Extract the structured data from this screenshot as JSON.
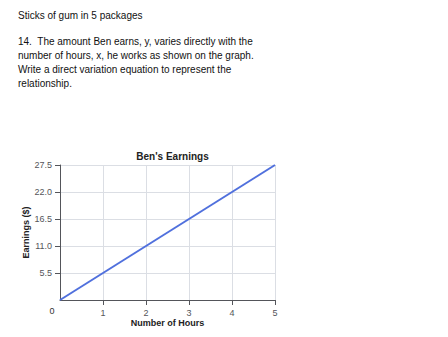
{
  "chart_data": {
    "type": "line",
    "title": "Ben's Earnings",
    "xlabel": "Number of Hours",
    "ylabel": "Earnings ($)",
    "x": [
      0,
      5
    ],
    "values": [
      0,
      27.5
    ],
    "xlim": [
      0,
      5
    ],
    "ylim": [
      0,
      27.5
    ],
    "xticks": [
      1,
      2,
      3,
      4,
      5
    ],
    "yticks": [
      5.5,
      {
        "value": 11,
        "label": "11.0"
      },
      16.5,
      {
        "value": 22,
        "label": "22.0"
      },
      27.5
    ],
    "grid": true,
    "annotations": [
      {
        "text": "Sticks of gum in 5 packages"
      },
      {
        "text": "14.  The amount Ben earns, y, varies directly with the\nnumber of hours, x, he works as shown on the graph.\nWrite a direct variation equation to represent the\nrelationship."
      },
      {
        "text": "0",
        "x": 0,
        "y": 0
      }
    ]
  }
}
